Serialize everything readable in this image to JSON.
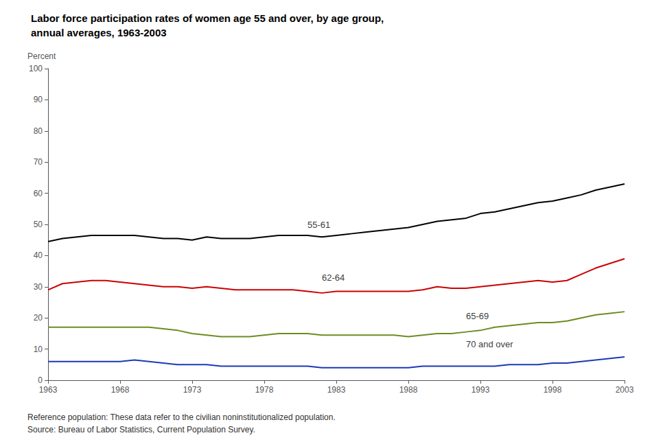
{
  "chart_data": {
    "type": "line",
    "title": "Labor force participation rates of women age 55 and over, by age group,",
    "subtitle": "annual averages, 1963-2003",
    "y_label": "Percent",
    "notes": [
      "Reference population: These data refer to the civilian noninstitutionalized population.",
      "Source: Bureau of Labor Statistics, Current Population Survey."
    ],
    "x": [
      1963,
      1964,
      1965,
      1966,
      1967,
      1968,
      1969,
      1970,
      1971,
      1972,
      1973,
      1974,
      1975,
      1976,
      1977,
      1978,
      1979,
      1980,
      1981,
      1982,
      1983,
      1984,
      1985,
      1986,
      1987,
      1988,
      1989,
      1990,
      1991,
      1992,
      1993,
      1994,
      1995,
      1996,
      1997,
      1998,
      1999,
      2000,
      2001,
      2002,
      2003
    ],
    "series": [
      {
        "color": "#000000",
        "values": [
          44.5,
          45.5,
          46.0,
          46.5,
          46.5,
          46.5,
          46.5,
          46.0,
          45.5,
          45.5,
          45.0,
          46.0,
          45.5,
          45.5,
          45.5,
          46.0,
          46.5,
          46.5,
          46.5,
          46.0,
          46.5,
          47.0,
          47.5,
          48.0,
          48.5,
          49.0,
          50.0,
          51.0,
          51.5,
          52.0,
          53.5,
          54.0,
          55.0,
          56.0,
          57.0,
          57.5,
          58.5,
          59.5,
          61.0,
          62.0,
          63.0
        ]
      },
      {
        "color": "#cc0000",
        "values": [
          29.0,
          31.0,
          31.5,
          32.0,
          32.0,
          31.5,
          31.0,
          30.5,
          30.0,
          30.0,
          29.5,
          30.0,
          29.5,
          29.0,
          29.0,
          29.0,
          29.0,
          29.0,
          28.5,
          28.0,
          28.5,
          28.5,
          28.5,
          28.5,
          28.5,
          28.5,
          29.0,
          30.0,
          29.5,
          29.5,
          30.0,
          30.5,
          31.0,
          31.5,
          32.0,
          31.5,
          32.0,
          34.0,
          36.0,
          37.5,
          39.0
        ]
      },
      {
        "color": "#6b8c21",
        "values": [
          17.0,
          17.0,
          17.0,
          17.0,
          17.0,
          17.0,
          17.0,
          17.0,
          16.5,
          16.0,
          15.0,
          14.5,
          14.0,
          14.0,
          14.0,
          14.5,
          15.0,
          15.0,
          15.0,
          14.5,
          14.5,
          14.5,
          14.5,
          14.5,
          14.5,
          14.0,
          14.5,
          15.0,
          15.0,
          15.5,
          16.0,
          17.0,
          17.5,
          18.0,
          18.5,
          18.5,
          19.0,
          20.0,
          21.0,
          21.5,
          22.0
        ]
      },
      {
        "color": "#1a3ab5",
        "values": [
          6.0,
          6.0,
          6.0,
          6.0,
          6.0,
          6.0,
          6.5,
          6.0,
          5.5,
          5.0,
          5.0,
          5.0,
          4.5,
          4.5,
          4.5,
          4.5,
          4.5,
          4.5,
          4.5,
          4.0,
          4.0,
          4.0,
          4.0,
          4.0,
          4.0,
          4.0,
          4.5,
          4.5,
          4.5,
          4.5,
          4.5,
          4.5,
          5.0,
          5.0,
          5.0,
          5.5,
          5.5,
          6.0,
          6.5,
          7.0,
          7.5
        ]
      }
    ],
    "annotations": [
      {
        "text": "55-61",
        "x": 1981,
        "y": 50
      },
      {
        "text": "62-64",
        "x": 1982,
        "y": 33
      },
      {
        "text": "65-69",
        "x": 1992,
        "y": 20.5
      },
      {
        "text": "70 and over",
        "x": 1992,
        "y": 11.5
      }
    ],
    "xlim": [
      1963,
      2003
    ],
    "xticks": [
      1963,
      1968,
      1973,
      1978,
      1983,
      1988,
      1993,
      1998,
      2003
    ],
    "ylim": [
      0,
      100
    ],
    "yticks": [
      0,
      10,
      20,
      30,
      40,
      50,
      60,
      70,
      80,
      90,
      100
    ],
    "grid": false
  }
}
